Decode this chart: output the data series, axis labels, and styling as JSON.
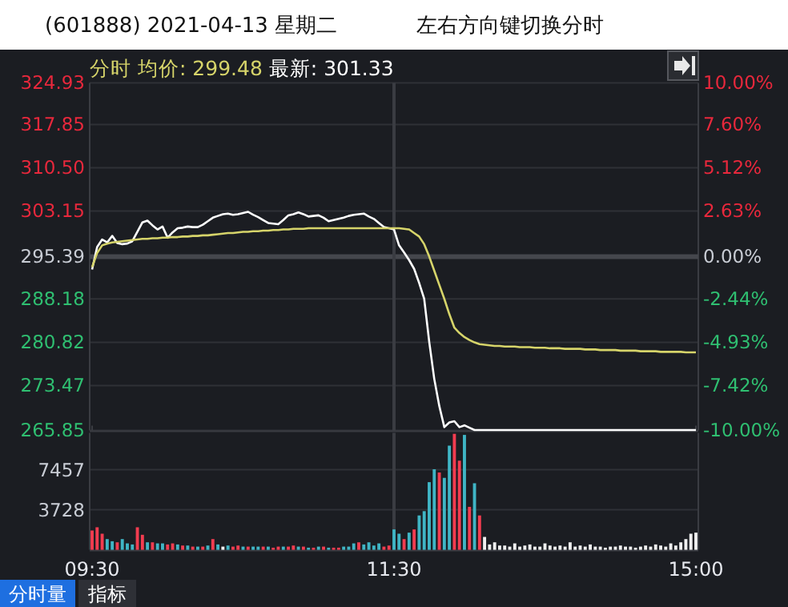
{
  "chart_data": [
    {
      "type": "line",
      "title": "(601888) 2021-04-13 星期二",
      "annotations": [
        "左右方向键切换分时",
        "分时",
        "均价: 299.48",
        "最新: 301.33"
      ],
      "categories": [
        "09:30",
        null,
        null,
        null,
        null,
        null,
        null,
        null,
        null,
        null,
        null,
        null,
        null,
        null,
        null,
        null,
        null,
        null,
        null,
        null,
        null,
        null,
        null,
        null,
        null,
        null,
        null,
        null,
        null,
        null,
        null,
        null,
        null,
        null,
        null,
        null,
        null,
        null,
        null,
        null,
        null,
        null,
        null,
        null,
        null,
        null,
        null,
        null,
        null,
        null,
        null,
        null,
        null,
        null,
        null,
        null,
        null,
        null,
        null,
        null,
        "11:30",
        null,
        null,
        null,
        null,
        null,
        null,
        null,
        null,
        null,
        null,
        null,
        null,
        null,
        null,
        null,
        null,
        null,
        null,
        null,
        null,
        null,
        null,
        null,
        null,
        null,
        null,
        null,
        null,
        null,
        null,
        null,
        null,
        null,
        null,
        null,
        null,
        null,
        null,
        null,
        null,
        null,
        null,
        null,
        null,
        null,
        null,
        null,
        null,
        null,
        null,
        null,
        null,
        null,
        null,
        null,
        null,
        null,
        null,
        null,
        "15:00"
      ],
      "ylim": [
        265.85,
        324.93
      ],
      "yticks": [
        265.85,
        273.47,
        280.82,
        288.18,
        295.39,
        303.15,
        {
          "value": 310.5,
          "label": "310.50"
        },
        317.85,
        324.93
      ],
      "y2lim": [
        -10,
        10
      ],
      "y2ticks": [
        {
          "value": -10,
          "label": "-10.00%"
        },
        {
          "value": -7.42,
          "label": "-7.42%"
        },
        {
          "value": -4.93,
          "label": "-4.93%"
        },
        {
          "value": -2.44,
          "label": "-2.44%"
        },
        {
          "value": 0,
          "label": "0.00%"
        },
        {
          "value": 2.63,
          "label": "2.63%"
        },
        {
          "value": 5.12,
          "label": "5.12%"
        },
        {
          "value": 7.6,
          "label": "7.60%"
        },
        {
          "value": 10,
          "label": "10.00%"
        }
      ],
      "grid": "y",
      "tick_labels": "y",
      "ref_lines": [
        {
          "axis": "y",
          "value": 295.39,
          "color": "#45474d"
        },
        {
          "axis": "x",
          "value": "11:30",
          "color": "#3a3c42"
        }
      ],
      "series": [
        {
          "color": "#ffffff",
          "values": [
            293.2,
            297.0,
            298.3,
            297.8,
            298.9,
            297.7,
            297.5,
            297.6,
            298.0,
            299.6,
            301.2,
            301.5,
            300.7,
            300.0,
            300.5,
            298.6,
            299.5,
            300.2,
            300.3,
            300.5,
            300.4,
            300.4,
            300.8,
            301.4,
            302.0,
            302.3,
            302.6,
            302.7,
            302.5,
            302.6,
            302.8,
            303.0,
            302.5,
            302.1,
            301.6,
            301.1,
            301.0,
            300.9,
            301.6,
            302.4,
            302.6,
            302.9,
            302.6,
            302.2,
            302.3,
            302.4,
            302.0,
            301.4,
            301.6,
            301.8,
            302.0,
            302.3,
            302.5,
            302.6,
            302.7,
            302.2,
            301.8,
            301.1,
            300.4,
            300.2,
            300.0,
            297.3,
            296.1,
            294.8,
            293.3,
            290.9,
            288.2,
            280.9,
            274.6,
            270.0,
            266.4,
            267.2,
            267.4,
            266.4,
            266.7,
            266.3,
            265.9,
            265.9,
            265.9,
            265.9,
            265.9,
            265.9,
            265.9,
            265.9,
            265.9,
            265.9,
            265.9,
            265.9,
            265.9,
            265.9,
            265.9,
            265.9,
            265.9,
            265.9,
            265.9,
            265.9,
            265.9,
            265.9,
            265.9,
            265.9,
            265.9,
            265.9,
            265.9,
            265.9,
            265.9,
            265.9,
            265.9,
            265.9,
            265.9,
            265.9,
            265.9,
            265.9,
            265.9,
            265.9,
            265.9,
            265.9,
            265.9,
            265.9,
            265.9,
            265.9,
            265.9
          ]
        },
        {
          "color": "#d6d46a",
          "values": [
            293.6,
            296.0,
            297.3,
            297.6,
            297.8,
            297.9,
            298.0,
            298.1,
            298.2,
            298.3,
            298.4,
            298.4,
            298.5,
            298.5,
            298.6,
            298.6,
            298.7,
            298.7,
            298.8,
            298.8,
            298.9,
            298.9,
            299.0,
            299.0,
            299.1,
            299.2,
            299.3,
            299.4,
            299.4,
            299.5,
            299.6,
            299.6,
            299.7,
            299.7,
            299.8,
            299.8,
            299.9,
            299.9,
            300.0,
            300.0,
            300.1,
            300.1,
            300.1,
            300.2,
            300.2,
            300.2,
            300.2,
            300.2,
            300.2,
            300.2,
            300.2,
            300.2,
            300.2,
            300.2,
            300.2,
            300.2,
            300.2,
            300.2,
            300.2,
            300.2,
            300.2,
            300.2,
            300.1,
            300.0,
            299.4,
            298.8,
            297.5,
            295.4,
            293.0,
            290.6,
            288.2,
            285.6,
            283.3,
            282.4,
            281.7,
            281.2,
            280.8,
            280.5,
            280.4,
            280.3,
            280.2,
            280.2,
            280.1,
            280.1,
            280.1,
            280.0,
            280.0,
            280.0,
            279.9,
            279.9,
            279.9,
            279.8,
            279.8,
            279.8,
            279.7,
            279.7,
            279.7,
            279.7,
            279.6,
            279.6,
            279.6,
            279.5,
            279.5,
            279.5,
            279.5,
            279.4,
            279.4,
            279.4,
            279.4,
            279.3,
            279.3,
            279.3,
            279.3,
            279.2,
            279.2,
            279.2,
            279.2,
            279.2,
            279.1,
            279.1,
            279.1
          ]
        }
      ]
    },
    {
      "type": "bar",
      "annotations": [
        "分时量",
        "指标"
      ],
      "ylim": [
        0,
        10900
      ],
      "yticks": [
        3728,
        7457
      ],
      "grid": "y",
      "categories": [
        "09:30",
        null,
        null,
        null,
        null,
        null,
        null,
        null,
        null,
        null,
        null,
        null,
        null,
        null,
        null,
        null,
        null,
        null,
        null,
        null,
        null,
        null,
        null,
        null,
        null,
        null,
        null,
        null,
        null,
        null,
        null,
        null,
        null,
        null,
        null,
        null,
        null,
        null,
        null,
        null,
        null,
        null,
        null,
        null,
        null,
        null,
        null,
        null,
        null,
        null,
        null,
        null,
        null,
        null,
        null,
        null,
        null,
        null,
        null,
        null,
        "11:30",
        null,
        null,
        null,
        null,
        null,
        null,
        null,
        null,
        null,
        null,
        null,
        null,
        null,
        null,
        null,
        null,
        null,
        null,
        null,
        null,
        null,
        null,
        null,
        null,
        null,
        null,
        null,
        null,
        null,
        null,
        null,
        null,
        null,
        null,
        null,
        null,
        null,
        null,
        null,
        null,
        null,
        null,
        null,
        null,
        null,
        null,
        null,
        null,
        null,
        null,
        null,
        null,
        null,
        null,
        null,
        null,
        null,
        null,
        null,
        "15:00"
      ],
      "ref_lines": [
        {
          "axis": "x",
          "value": "11:30",
          "color": "#3a3c42"
        }
      ],
      "values": [
        1800,
        2100,
        1500,
        1000,
        800,
        700,
        1000,
        600,
        500,
        2100,
        1400,
        700,
        700,
        600,
        600,
        500,
        600,
        500,
        400,
        400,
        300,
        300,
        300,
        400,
        1000,
        500,
        300,
        400,
        300,
        400,
        300,
        300,
        300,
        300,
        300,
        300,
        200,
        300,
        300,
        300,
        400,
        300,
        300,
        200,
        200,
        300,
        300,
        200,
        200,
        200,
        300,
        300,
        600,
        700,
        500,
        700,
        400,
        600,
        300,
        400,
        1900,
        1500,
        1000,
        1600,
        1900,
        3200,
        3600,
        6300,
        7500,
        7200,
        6700,
        9700,
        10800,
        8300,
        10700,
        4000,
        6200,
        3200,
        1200,
        500,
        700,
        400,
        400,
        300,
        600,
        300,
        400,
        500,
        300,
        300,
        600,
        400,
        300,
        400,
        300,
        700,
        300,
        400,
        300,
        500,
        300,
        300,
        200,
        300,
        300,
        400,
        300,
        300,
        200,
        300,
        400,
        300,
        500,
        400,
        300,
        600,
        400,
        700,
        1000,
        1500,
        1600
      ],
      "colors": [
        "#f23c50",
        "#f23c50",
        "#f23c50",
        "#3fb5c5",
        "#3fb5c5",
        "#f23c50",
        "#3fb5c5",
        "#3fb5c5",
        "#3fb5c5",
        "#f23c50",
        "#f23c50",
        "#3fb5c5",
        "#f23c50",
        "#3fb5c5",
        "#3fb5c5",
        "#f23c50",
        "#f23c50",
        "#3fb5c5",
        "#f23c50",
        "#3fb5c5",
        "#f23c50",
        "#3fb5c5",
        "#f23c50",
        "#3fb5c5",
        "#f23c50",
        "#3fb5c5",
        "#f0f0f0",
        "#3fb5c5",
        "#f23c50",
        "#f23c50",
        "#3fb5c5",
        "#f23c50",
        "#3fb5c5",
        "#3fb5c5",
        "#f23c50",
        "#3fb5c5",
        "#f23c50",
        "#f23c50",
        "#3fb5c5",
        "#f23c50",
        "#f23c50",
        "#3fb5c5",
        "#f23c50",
        "#3fb5c5",
        "#f23c50",
        "#3fb5c5",
        "#f23c50",
        "#3fb5c5",
        "#f23c50",
        "#f23c50",
        "#3fb5c5",
        "#3fb5c5",
        "#3fb5c5",
        "#f23c50",
        "#3fb5c5",
        "#3fb5c5",
        "#3fb5c5",
        "#3fb5c5",
        "#f23c50",
        "#f23c50",
        "#3fb5c5",
        "#3fb5c5",
        "#f23c50",
        "#3fb5c5",
        "#f23c50",
        "#3fb5c5",
        "#3fb5c5",
        "#3fb5c5",
        "#3fb5c5",
        "#f23c50",
        "#3fb5c5",
        "#3fb5c5",
        "#f23c50",
        "#f23c50",
        "#3fb5c5",
        "#f23c50",
        "#3fb5c5",
        "#f23c50",
        "#f0f0f0",
        "#f0f0f0",
        "#f0f0f0",
        "#f0f0f0",
        "#f0f0f0",
        "#f0f0f0",
        "#f0f0f0",
        "#f0f0f0",
        "#f0f0f0",
        "#f0f0f0",
        "#f0f0f0",
        "#f0f0f0",
        "#f0f0f0",
        "#f0f0f0",
        "#f0f0f0",
        "#f0f0f0",
        "#f0f0f0",
        "#f0f0f0",
        "#f0f0f0",
        "#f0f0f0",
        "#f0f0f0",
        "#f0f0f0",
        "#f0f0f0",
        "#f0f0f0",
        "#f0f0f0",
        "#f0f0f0",
        "#f0f0f0",
        "#f0f0f0",
        "#f0f0f0",
        "#f0f0f0",
        "#f0f0f0",
        "#f0f0f0",
        "#f0f0f0",
        "#f0f0f0",
        "#f0f0f0",
        "#f0f0f0",
        "#f0f0f0",
        "#f0f0f0",
        "#f0f0f0",
        "#f0f0f0",
        "#f0f0f0",
        "#f0f0f0",
        "#f0f0f0"
      ]
    }
  ]
}
